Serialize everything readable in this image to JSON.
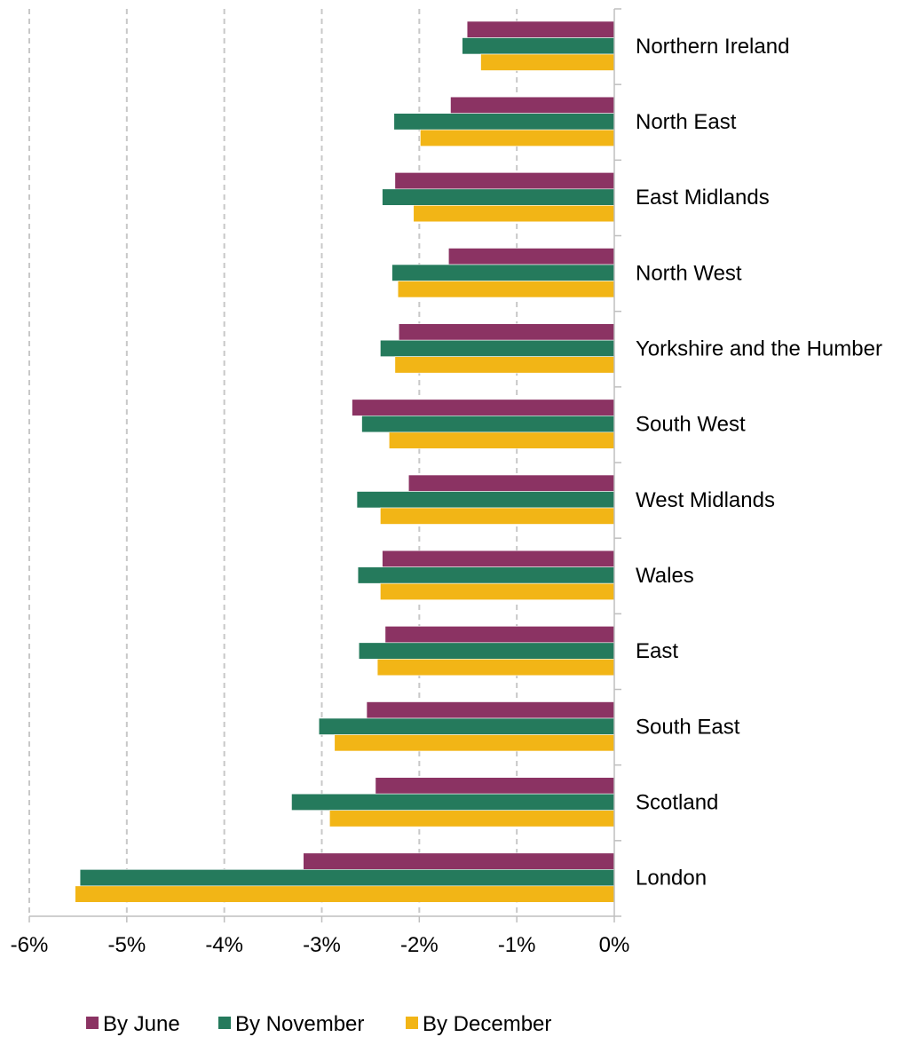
{
  "chart_data": {
    "type": "bar",
    "orientation": "horizontal",
    "title": "",
    "xlabel": "",
    "ylabel": "",
    "xlim": [
      -6,
      0
    ],
    "x_ticks": [
      -6,
      -5,
      -4,
      -3,
      -2,
      -1,
      0
    ],
    "x_tick_labels": [
      "-6%",
      "-5%",
      "-4%",
      "-3%",
      "-2%",
      "-1%",
      "0%"
    ],
    "grid": "vertical dashed",
    "legend_position": "bottom",
    "categories": [
      "Northern Ireland",
      "North East",
      "East Midlands",
      "North West",
      "Yorkshire and the Humber",
      "South West",
      "West Midlands",
      "Wales",
      "East",
      "South East",
      "Scotland",
      "London"
    ],
    "series": [
      {
        "name": "By June",
        "color": "#8B3363",
        "values": [
          -1.51,
          -1.68,
          -2.25,
          -1.7,
          -2.21,
          -2.69,
          -2.11,
          -2.38,
          -2.35,
          -2.54,
          -2.45,
          -3.19
        ]
      },
      {
        "name": "By November",
        "color": "#257A5C",
        "values": [
          -1.56,
          -2.26,
          -2.38,
          -2.28,
          -2.4,
          -2.59,
          -2.64,
          -2.63,
          -2.62,
          -3.03,
          -3.31,
          -5.48
        ]
      },
      {
        "name": "By December",
        "color": "#F2B516",
        "values": [
          -1.37,
          -1.99,
          -2.06,
          -2.22,
          -2.25,
          -2.31,
          -2.4,
          -2.4,
          -2.43,
          -2.87,
          -2.92,
          -5.53
        ]
      }
    ]
  }
}
